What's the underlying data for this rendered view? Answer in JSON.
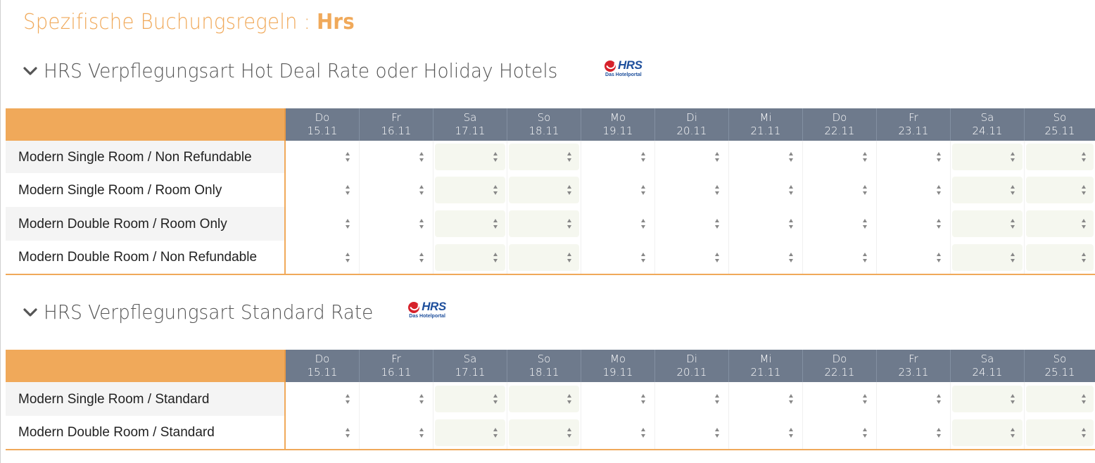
{
  "page": {
    "title_prefix": "Spezifische Buchungsregeln : ",
    "title_strong": "Hrs"
  },
  "logo": {
    "word": "HRS",
    "sub": "Das Hotelportal"
  },
  "days": [
    {
      "name": "Do",
      "date": "15.11",
      "weekend": false
    },
    {
      "name": "Fr",
      "date": "16.11",
      "weekend": false
    },
    {
      "name": "Sa",
      "date": "17.11",
      "weekend": true
    },
    {
      "name": "So",
      "date": "18.11",
      "weekend": true
    },
    {
      "name": "Mo",
      "date": "19.11",
      "weekend": false
    },
    {
      "name": "Di",
      "date": "20.11",
      "weekend": false
    },
    {
      "name": "Mi",
      "date": "21.11",
      "weekend": false
    },
    {
      "name": "Do",
      "date": "22.11",
      "weekend": false
    },
    {
      "name": "Fr",
      "date": "23.11",
      "weekend": false
    },
    {
      "name": "Sa",
      "date": "24.11",
      "weekend": true
    },
    {
      "name": "So",
      "date": "25.11",
      "weekend": true
    }
  ],
  "sections": [
    {
      "title": "HRS Verpflegungsart Hot Deal Rate oder Holiday Hotels",
      "rows": [
        {
          "label": "Modern Single Room / Non Refundable"
        },
        {
          "label": "Modern Single Room / Room Only"
        },
        {
          "label": "Modern Double Room / Room Only"
        },
        {
          "label": "Modern Double Room / Non Refundable"
        }
      ]
    },
    {
      "title": "HRS Verpflegungsart Standard Rate",
      "rows": [
        {
          "label": "Modern Single Room / Standard"
        },
        {
          "label": "Modern Double Room / Standard"
        }
      ]
    }
  ],
  "icons": {
    "expand": "chevron-down-icon",
    "select": "select-arrows-icon"
  },
  "colors": {
    "accent": "#f0a95a",
    "header": "#6e7a8c",
    "weekend_cell": "#f5f7ef"
  }
}
